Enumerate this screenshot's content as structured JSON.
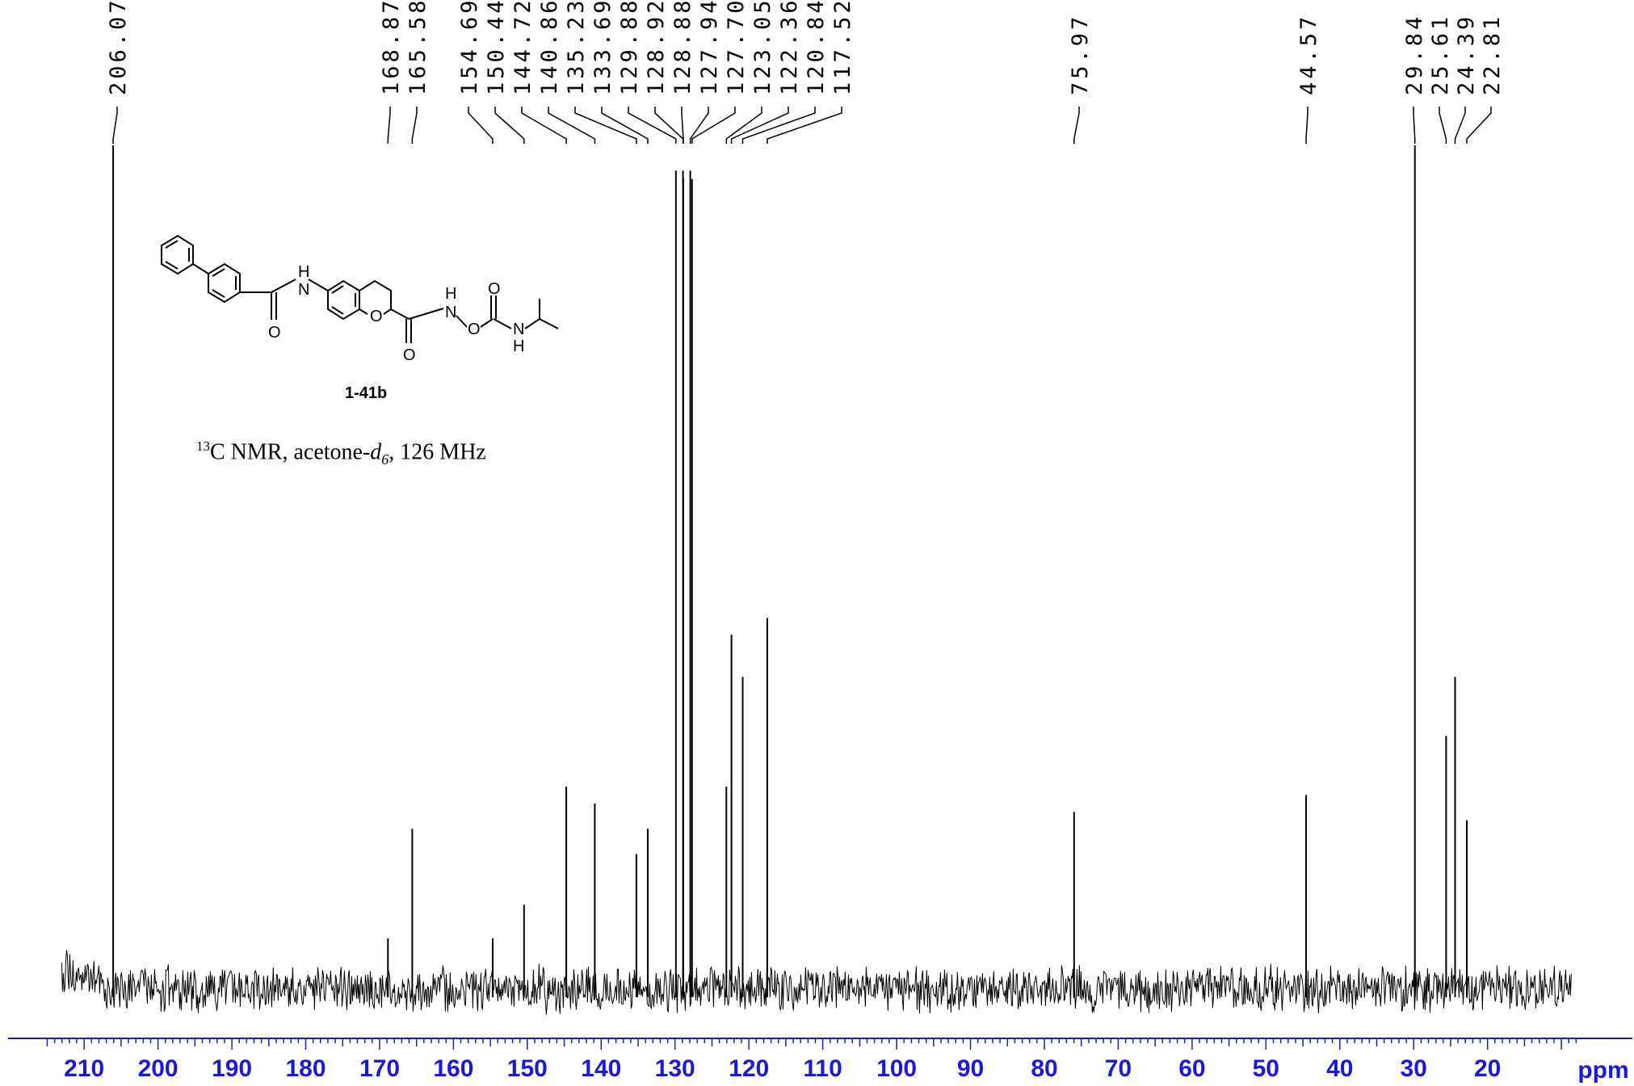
{
  "chart_data": {
    "type": "line",
    "title": "",
    "xlabel": "ppm",
    "ylabel": "",
    "xlim": [
      215,
      8
    ],
    "x_reversed": true,
    "x_ticks": [
      "210",
      "200",
      "190",
      "180",
      "170",
      "160",
      "150",
      "140",
      "130",
      "120",
      "110",
      "100",
      "90",
      "80",
      "70",
      "60",
      "50",
      "40",
      "30",
      "20"
    ],
    "x_unit_label": "ppm",
    "peak_labels": [
      "206.07",
      "168.87",
      "165.58",
      "154.69",
      "150.44",
      "144.72",
      "140.86",
      "135.23",
      "133.69",
      "129.88",
      "128.92",
      "128.88",
      "127.94",
      "127.70",
      "123.05",
      "122.36",
      "120.84",
      "117.52",
      "75.97",
      "44.57",
      "29.84",
      "25.61",
      "24.39",
      "22.81"
    ],
    "peaks": [
      {
        "ppm": 206.07,
        "intensity": 1.0
      },
      {
        "ppm": 168.87,
        "intensity": 0.06
      },
      {
        "ppm": 165.58,
        "intensity": 0.19
      },
      {
        "ppm": 154.69,
        "intensity": 0.06
      },
      {
        "ppm": 150.44,
        "intensity": 0.1
      },
      {
        "ppm": 144.72,
        "intensity": 0.24
      },
      {
        "ppm": 140.86,
        "intensity": 0.22
      },
      {
        "ppm": 135.23,
        "intensity": 0.16
      },
      {
        "ppm": 133.69,
        "intensity": 0.19
      },
      {
        "ppm": 129.88,
        "intensity": 0.97
      },
      {
        "ppm": 128.92,
        "intensity": 0.97
      },
      {
        "ppm": 128.88,
        "intensity": 0.96
      },
      {
        "ppm": 127.94,
        "intensity": 0.97
      },
      {
        "ppm": 127.7,
        "intensity": 0.96
      },
      {
        "ppm": 123.05,
        "intensity": 0.24
      },
      {
        "ppm": 122.36,
        "intensity": 0.42
      },
      {
        "ppm": 120.84,
        "intensity": 0.37
      },
      {
        "ppm": 117.52,
        "intensity": 0.44
      },
      {
        "ppm": 75.97,
        "intensity": 0.21
      },
      {
        "ppm": 44.57,
        "intensity": 0.23
      },
      {
        "ppm": 29.84,
        "intensity": 1.0
      },
      {
        "ppm": 25.61,
        "intensity": 0.3
      },
      {
        "ppm": 24.39,
        "intensity": 0.37
      },
      {
        "ppm": 22.81,
        "intensity": 0.2
      }
    ],
    "grid": false,
    "legend": "none"
  },
  "annotation": {
    "compound_id": "1-41b",
    "conditions_iso": "13",
    "conditions_nucleus": "C NMR, acetone-",
    "conditions_solvent": "d",
    "conditions_deut": "6",
    "conditions_freq": ", 126 MHz"
  },
  "structure_labels": {
    "amide_nh": "H",
    "amide_n": "N",
    "amide_o": "O",
    "ring_o": "O",
    "carbonyl_o": "O",
    "hydroxamate_h": "H",
    "hydroxamate_n": "N",
    "hydroxamate_o": "O",
    "carbamate_o": "O",
    "carbamate_n": "N",
    "carbamate_h": "H"
  },
  "colors": {
    "axis": "#1a1ad6",
    "trace": "#000000"
  }
}
